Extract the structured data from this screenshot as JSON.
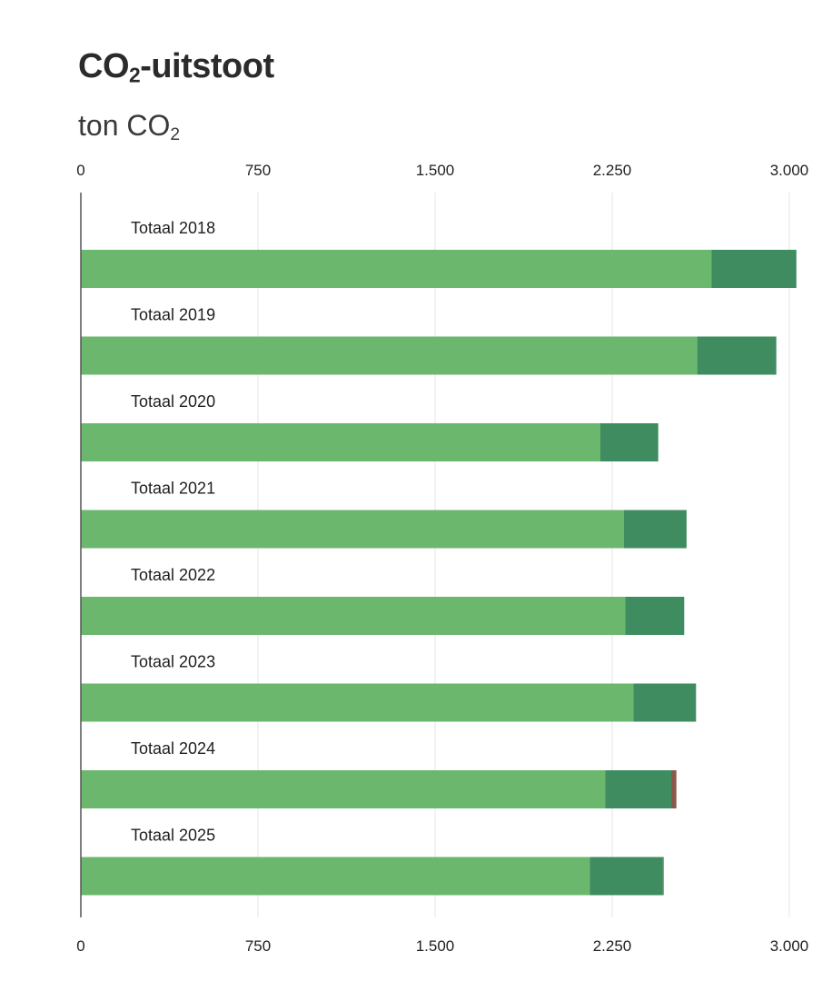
{
  "header": {
    "title_main": "CO",
    "title_sub": "2",
    "title_rest": "-uitstoot",
    "subtitle_main": "ton CO",
    "subtitle_sub": "2"
  },
  "chart_data": {
    "type": "bar",
    "orientation": "horizontal",
    "stacked": true,
    "title": "CO₂-uitstoot",
    "subtitle": "ton CO₂",
    "xlim": [
      0,
      3000
    ],
    "ticks": [
      0,
      750,
      1500,
      2250,
      3000
    ],
    "tick_labels": [
      "0",
      "750",
      "1.500",
      "2.250",
      "3.000"
    ],
    "axis_position": "top and bottom",
    "grid": true,
    "categories": [
      "Totaal 2018",
      "Totaal 2019",
      "Totaal 2020",
      "Totaal 2021",
      "Totaal 2022",
      "Totaal 2023",
      "Totaal 2024",
      "Totaal 2025"
    ],
    "series": [
      {
        "color": "#6bb76e",
        "values": [
          2670,
          2610,
          2200,
          2300,
          2305,
          2340,
          2220,
          2155
        ]
      },
      {
        "color": "#3e8c5f",
        "values": [
          360,
          335,
          245,
          265,
          250,
          265,
          280,
          310
        ]
      },
      {
        "color": "#8a5a48",
        "values": [
          0,
          0,
          0,
          0,
          0,
          0,
          22,
          3
        ]
      }
    ]
  }
}
